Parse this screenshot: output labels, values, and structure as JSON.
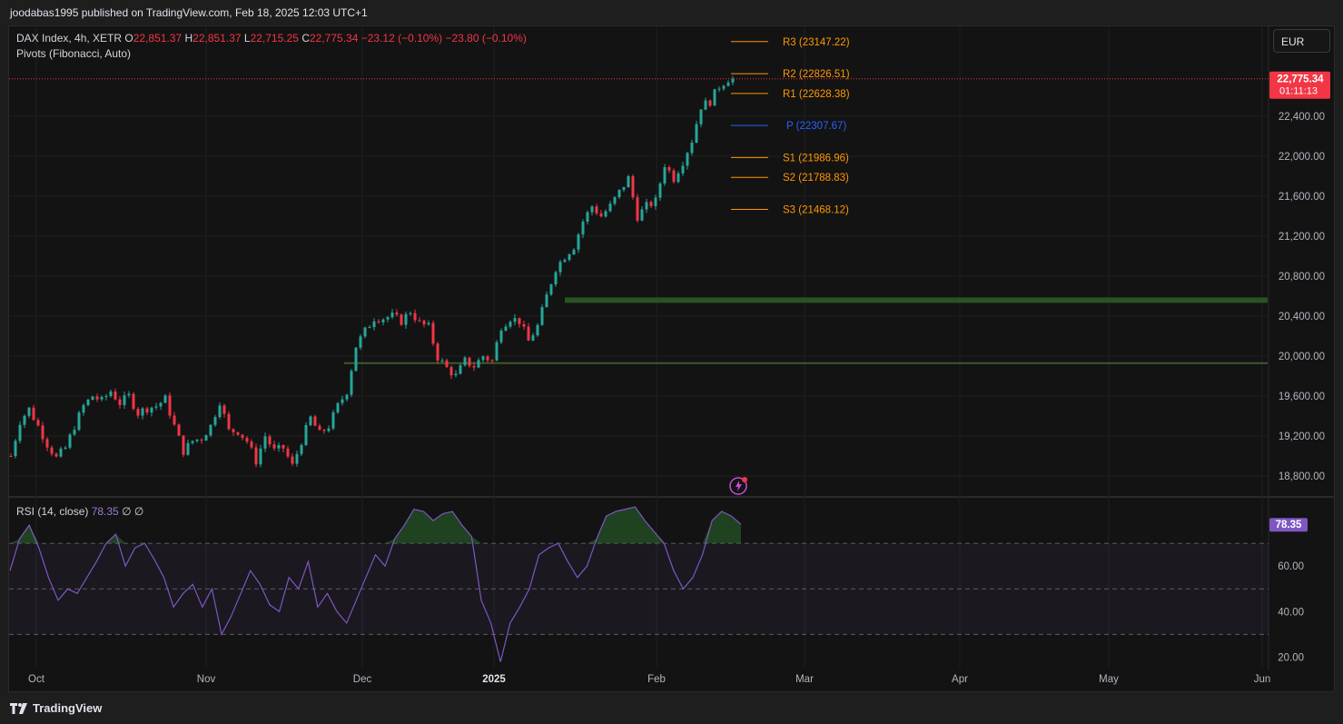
{
  "header": {
    "publisher": "joodabas1995 published on TradingView.com, Feb 18, 2025 12:03 UTC+1"
  },
  "footer": {
    "brand": "TradingView"
  },
  "legend": {
    "symbol": "DAX Index, 4h, XETR",
    "o_label": "O",
    "o_val": "22,851.37",
    "h_label": "H",
    "h_val": "22,851.37",
    "l_label": "L",
    "l_val": "22,715.25",
    "c_label": "C",
    "c_val": "22,775.34",
    "change": "−23.12 (−0.10%)",
    "change2": "−23.80 (−0.10%)",
    "indicator": "Pivots (Fibonacci, Auto)"
  },
  "rsi_legend": {
    "name": "RSI (14, close)",
    "value": "78.35",
    "extra1": "∅",
    "extra2": "∅"
  },
  "currency": "EUR",
  "price_tag": {
    "price": "22,775.34",
    "countdown": "01:11:13"
  },
  "rsi_tag": "78.35",
  "colors": {
    "up": "#26a69a",
    "down": "#f23645",
    "pivot_orange": "#ff9800",
    "pivot_blue": "#2962ff",
    "rsi": "#7e57c2",
    "support": "#2e5a2a"
  },
  "chart_data": [
    {
      "type": "candlestick",
      "title": "DAX Index, 4h, XETR",
      "x_labels": [
        "Oct",
        "Nov",
        "Dec",
        "2025",
        "Feb",
        "Mar",
        "Apr",
        "May",
        "Jun"
      ],
      "y_ticks": [
        "18,800.00",
        "19,200.00",
        "19,600.00",
        "20,000.00",
        "20,400.00",
        "20,800.00",
        "21,200.00",
        "21,600.00",
        "22,000.00",
        "22,400.00"
      ],
      "y_range": [
        18600,
        23300
      ],
      "y_tick_values": [
        18800,
        19200,
        19600,
        20000,
        20400,
        20800,
        21200,
        21600,
        22000,
        22400
      ],
      "current_price": 22775.34,
      "close_path": [
        [
          0,
          19000
        ],
        [
          2,
          19350
        ],
        [
          4,
          19470
        ],
        [
          6,
          19300
        ],
        [
          8,
          19120
        ],
        [
          10,
          18980
        ],
        [
          12,
          19080
        ],
        [
          14,
          19300
        ],
        [
          16,
          19500
        ],
        [
          18,
          19600
        ],
        [
          20,
          19550
        ],
        [
          22,
          19650
        ],
        [
          24,
          19530
        ],
        [
          26,
          19600
        ],
        [
          28,
          19430
        ],
        [
          30,
          19480
        ],
        [
          32,
          19500
        ],
        [
          34,
          19570
        ],
        [
          36,
          19300
        ],
        [
          38,
          19050
        ],
        [
          40,
          19150
        ],
        [
          42,
          19180
        ],
        [
          44,
          19300
        ],
        [
          46,
          19550
        ],
        [
          48,
          19250
        ],
        [
          50,
          19250
        ],
        [
          52,
          19150
        ],
        [
          54,
          18950
        ],
        [
          56,
          19200
        ],
        [
          58,
          19050
        ],
        [
          60,
          19080
        ],
        [
          62,
          18900
        ],
        [
          64,
          19150
        ],
        [
          66,
          19380
        ],
        [
          68,
          19220
        ],
        [
          70,
          19300
        ],
        [
          72,
          19500
        ],
        [
          74,
          19650
        ],
        [
          76,
          20100
        ],
        [
          78,
          20250
        ],
        [
          80,
          20380
        ],
        [
          82,
          20380
        ],
        [
          84,
          20400
        ],
        [
          86,
          20350
        ],
        [
          88,
          20450
        ],
        [
          90,
          20330
        ],
        [
          92,
          20290
        ],
        [
          94,
          19990
        ],
        [
          96,
          19880
        ],
        [
          98,
          19800
        ],
        [
          100,
          19950
        ],
        [
          102,
          19900
        ],
        [
          104,
          20000
        ],
        [
          106,
          19950
        ],
        [
          108,
          20300
        ],
        [
          110,
          20380
        ],
        [
          112,
          20350
        ],
        [
          114,
          20150
        ],
        [
          116,
          20300
        ],
        [
          118,
          20600
        ],
        [
          120,
          20880
        ],
        [
          122,
          21000
        ],
        [
          124,
          21100
        ],
        [
          126,
          21350
        ],
        [
          128,
          21500
        ],
        [
          130,
          21400
        ],
        [
          132,
          21500
        ],
        [
          134,
          21640
        ],
        [
          136,
          21780
        ],
        [
          138,
          21400
        ],
        [
          140,
          21500
        ],
        [
          142,
          21550
        ],
        [
          144,
          21920
        ],
        [
          146,
          21780
        ],
        [
          148,
          21950
        ],
        [
          150,
          22160
        ],
        [
          152,
          22500
        ],
        [
          154,
          22550
        ],
        [
          156,
          22700
        ],
        [
          158,
          22775.34
        ]
      ],
      "pivots": [
        {
          "label": "R3",
          "value": 23147.22
        },
        {
          "label": "R2",
          "value": 22826.51
        },
        {
          "label": "R1",
          "value": 22628.38
        },
        {
          "label": "P",
          "value": 22307.67
        },
        {
          "label": "S1",
          "value": 21986.96
        },
        {
          "label": "S2",
          "value": 21788.83
        },
        {
          "label": "S3",
          "value": 21468.12
        }
      ],
      "pivot_labels": [
        "R3 (23147.22)",
        "R2 (22826.51)",
        "R1 (22628.38)",
        "P (22307.67)",
        "S1 (21986.96)",
        "S2 (21788.83)",
        "S3 (21468.12)"
      ],
      "support_levels": [
        20560,
        19930
      ]
    },
    {
      "type": "line",
      "title": "RSI (14, close)",
      "y_ticks": [
        "20.00",
        "40.00",
        "60.00"
      ],
      "y_tick_values": [
        20,
        40,
        60
      ],
      "y_range": [
        15,
        90
      ],
      "bands": [
        30,
        50,
        70
      ],
      "values": [
        58,
        72,
        78,
        68,
        55,
        45,
        50,
        48,
        55,
        62,
        70,
        74,
        60,
        68,
        70,
        63,
        55,
        42,
        48,
        52,
        42,
        50,
        30,
        38,
        48,
        58,
        52,
        43,
        40,
        55,
        50,
        62,
        42,
        48,
        40,
        35,
        45,
        55,
        65,
        60,
        72,
        78,
        85,
        84,
        80,
        83,
        84,
        78,
        73,
        45,
        35,
        18,
        35,
        42,
        50,
        65,
        68,
        70,
        62,
        55,
        60,
        72,
        82,
        84,
        85,
        86,
        80,
        75,
        70,
        58,
        50,
        55,
        65,
        80,
        84,
        82,
        78.35
      ]
    }
  ]
}
